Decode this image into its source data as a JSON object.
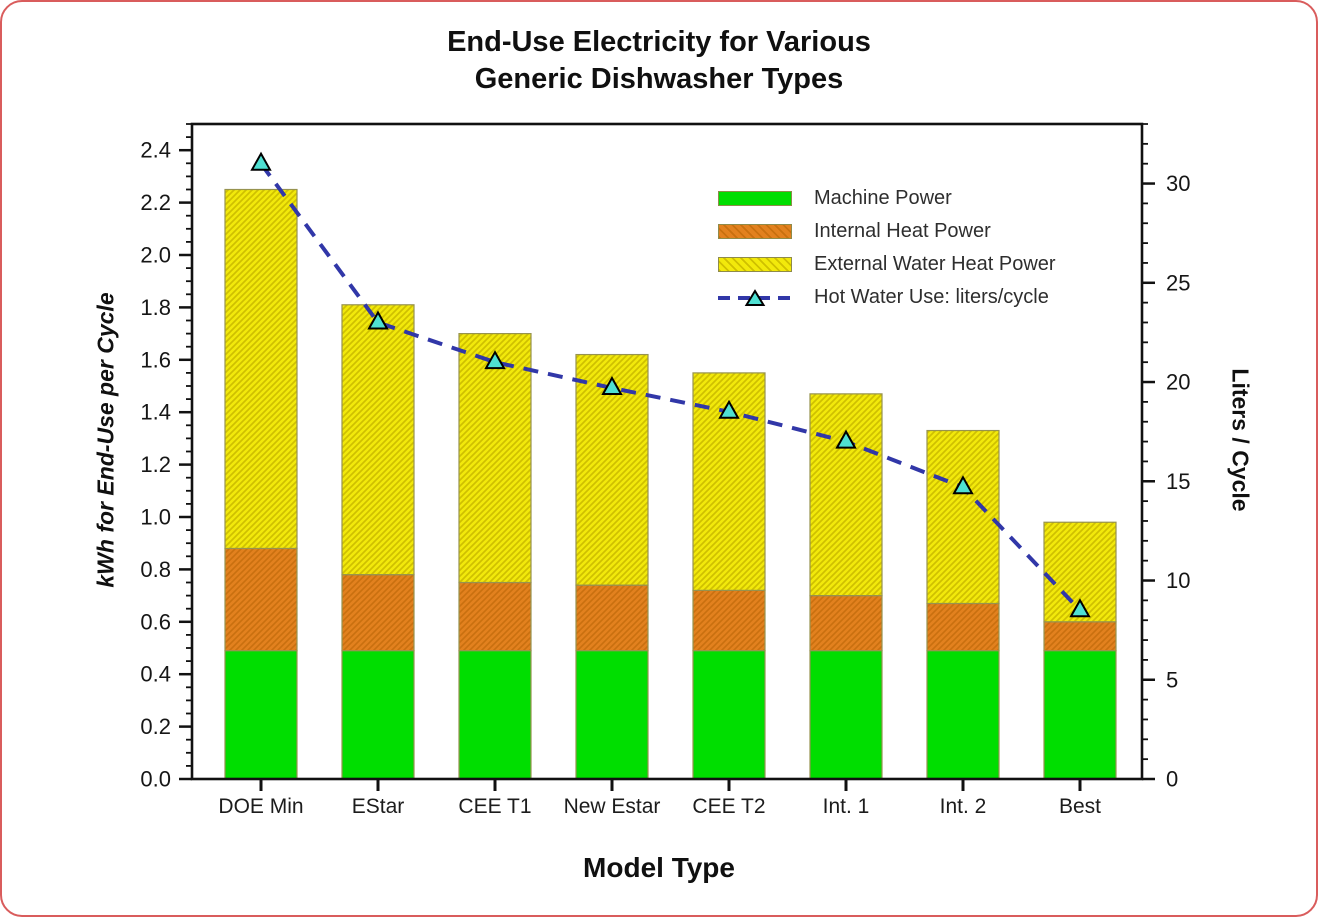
{
  "page": {
    "background": "#FFFFFF",
    "border_color": "#D95C5C"
  },
  "title": {
    "line1": "End-Use Electricity for Various",
    "line2": "Generic Dishwasher Types"
  },
  "chart_data": {
    "type": "bar",
    "subtype": "stacked-bars-with-line-overlay",
    "title": "End-Use Electricity for Various Generic Dishwasher Types",
    "categories": [
      "DOE Min",
      "EStar",
      "CEE T1",
      "New Estar",
      "CEE T2",
      "Int. 1",
      "Int. 2",
      "Best"
    ],
    "series": [
      {
        "name": "Machine Power",
        "type": "bar",
        "stack": "kwh",
        "axis": "left",
        "color": "#00DE00",
        "hatch": false,
        "values": [
          0.49,
          0.49,
          0.49,
          0.49,
          0.49,
          0.49,
          0.49,
          0.49
        ]
      },
      {
        "name": "Internal Heat Power",
        "type": "bar",
        "stack": "kwh",
        "axis": "left",
        "color": "#E2811E",
        "hatch": true,
        "hatch_color": "#C9700F",
        "values": [
          0.39,
          0.29,
          0.26,
          0.25,
          0.23,
          0.21,
          0.18,
          0.11
        ]
      },
      {
        "name": "External Water Heat Power",
        "type": "bar",
        "stack": "kwh",
        "axis": "left",
        "color": "#F2E90B",
        "hatch": true,
        "hatch_color": "#CFC000",
        "values": [
          1.37,
          1.03,
          0.95,
          0.88,
          0.83,
          0.77,
          0.66,
          0.38
        ]
      },
      {
        "name": "Hot Water Use: liters/cycle",
        "type": "line",
        "axis": "right",
        "color": "#3137A8",
        "line_style": "dashed",
        "marker": "triangle",
        "marker_color": "#4FE0D2",
        "marker_edge": "#000000",
        "values": [
          31,
          23,
          21,
          19.7,
          18.5,
          17,
          14.7,
          8.5
        ]
      }
    ],
    "stack_totals_kwh": [
      2.25,
      1.81,
      1.7,
      1.62,
      1.55,
      1.47,
      1.33,
      0.98
    ],
    "left_axis": {
      "label": "kWh for End-Use per Cycle",
      "min": 0,
      "max": 2.5,
      "major_step": 0.2,
      "minor_step": 0.05,
      "tick_labels": [
        "0.0",
        "0.2",
        "0.4",
        "0.6",
        "0.8",
        "1.0",
        "1.2",
        "1.4",
        "1.6",
        "1.8",
        "2.0",
        "2.2",
        "2.4"
      ]
    },
    "right_axis": {
      "label": "Liters / Cycle",
      "min": 0,
      "max": 33,
      "major_step": 5,
      "minor_step": 1,
      "tick_labels": [
        "0",
        "5",
        "10",
        "15",
        "20",
        "25",
        "30"
      ]
    },
    "x_axis": {
      "label": "Model Type"
    },
    "legend": {
      "position": "inside-top-right"
    },
    "grid": false,
    "bar_outline_color": "#97934F"
  }
}
